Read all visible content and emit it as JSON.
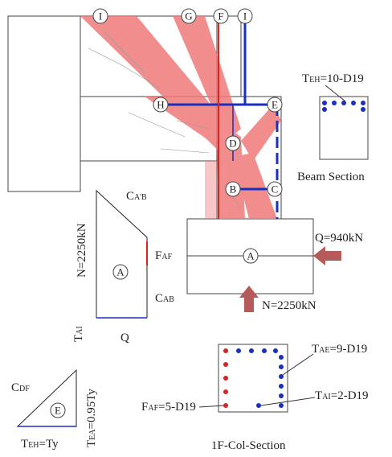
{
  "nodes": [
    "I",
    "G",
    "F",
    "I",
    "H",
    "E",
    "D",
    "B",
    "C",
    "A",
    "A",
    "E"
  ],
  "labels": {
    "beam_tie": {
      "main": "T",
      "sub": "EH",
      "rest": "=10-D19"
    },
    "beam_section": "Beam Section",
    "q_load": "Q=940kN",
    "n_load": "N=2250kN",
    "force_polygon": {
      "c_ab_top": {
        "main": "C",
        "sub": "A'B"
      },
      "n": "N=2250kN",
      "f_af": {
        "main": "F",
        "sub": "AF"
      },
      "c_ab": {
        "main": "C",
        "sub": "AB"
      },
      "t_ai": {
        "main": "T",
        "sub": "AI"
      },
      "q": "Q"
    },
    "small_triangle": {
      "c_df": {
        "main": "C",
        "sub": "DF"
      },
      "t_eh": {
        "main": "T",
        "sub": "EH",
        "rest": "=Ty"
      },
      "t_ea": {
        "main": "T",
        "sub": "EA",
        "rest": "=0.95Ty"
      }
    },
    "col_section": {
      "t_ae": {
        "main": "T",
        "sub": "AE",
        "rest": "=9-D19"
      },
      "t_ai": {
        "main": "T",
        "sub": "AI",
        "rest": "=2-D19"
      },
      "f_af": {
        "main": "F",
        "sub": "AF",
        "rest": "=5-D19"
      },
      "title": "1F-Col-Section"
    }
  }
}
